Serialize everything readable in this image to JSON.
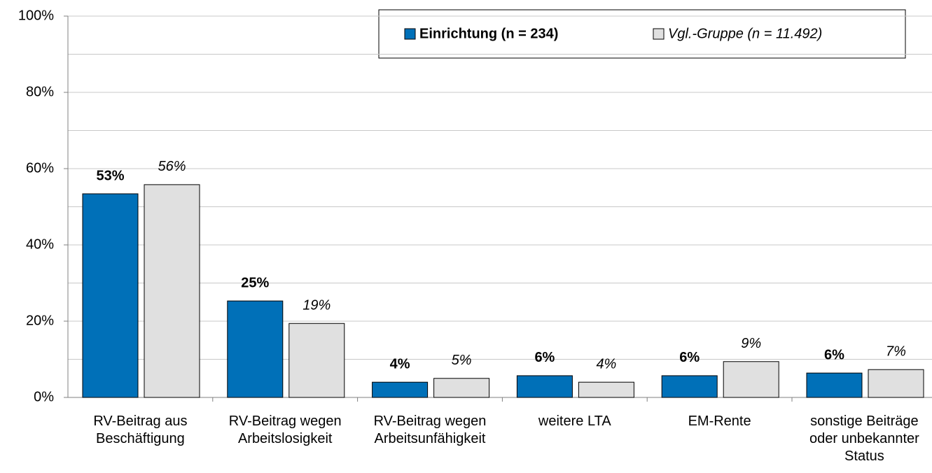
{
  "chart_data": {
    "type": "bar",
    "categories": [
      "RV-Beitrag aus\nBeschäftigung",
      "RV-Beitrag wegen\nArbeitslosigkeit",
      "RV-Beitrag wegen\nArbeitsunfähigkeit",
      "weitere LTA",
      "EM-Rente",
      "sonstige Beiträge\noder unbekannter\nStatus"
    ],
    "series": [
      {
        "name": "Einrichtung (n = 234)",
        "color": "#0070b8",
        "values": [
          53.4,
          25.3,
          4.0,
          5.7,
          5.7,
          6.4
        ],
        "value_labels": [
          "53%",
          "25%",
          "4%",
          "6%",
          "6%",
          "6%"
        ]
      },
      {
        "name": "Vgl.-Gruppe (n = 11.492)",
        "color": "#e0e0e0",
        "values": [
          55.8,
          19.4,
          5.0,
          4.0,
          9.4,
          7.3
        ],
        "value_labels": [
          "56%",
          "19%",
          "5%",
          "4%",
          "9%",
          "7%"
        ]
      }
    ],
    "ylim": [
      0,
      100
    ],
    "yticks": [
      {
        "value": 0,
        "label": "0%"
      },
      {
        "value": 20,
        "label": "20%"
      },
      {
        "value": 40,
        "label": "40%"
      },
      {
        "value": 60,
        "label": "60%"
      },
      {
        "value": 80,
        "label": "80%"
      },
      {
        "value": 100,
        "label": "100%"
      }
    ],
    "minor_yticks": [
      10,
      30,
      50,
      70,
      90
    ],
    "grid": true,
    "legend": "top-right"
  }
}
